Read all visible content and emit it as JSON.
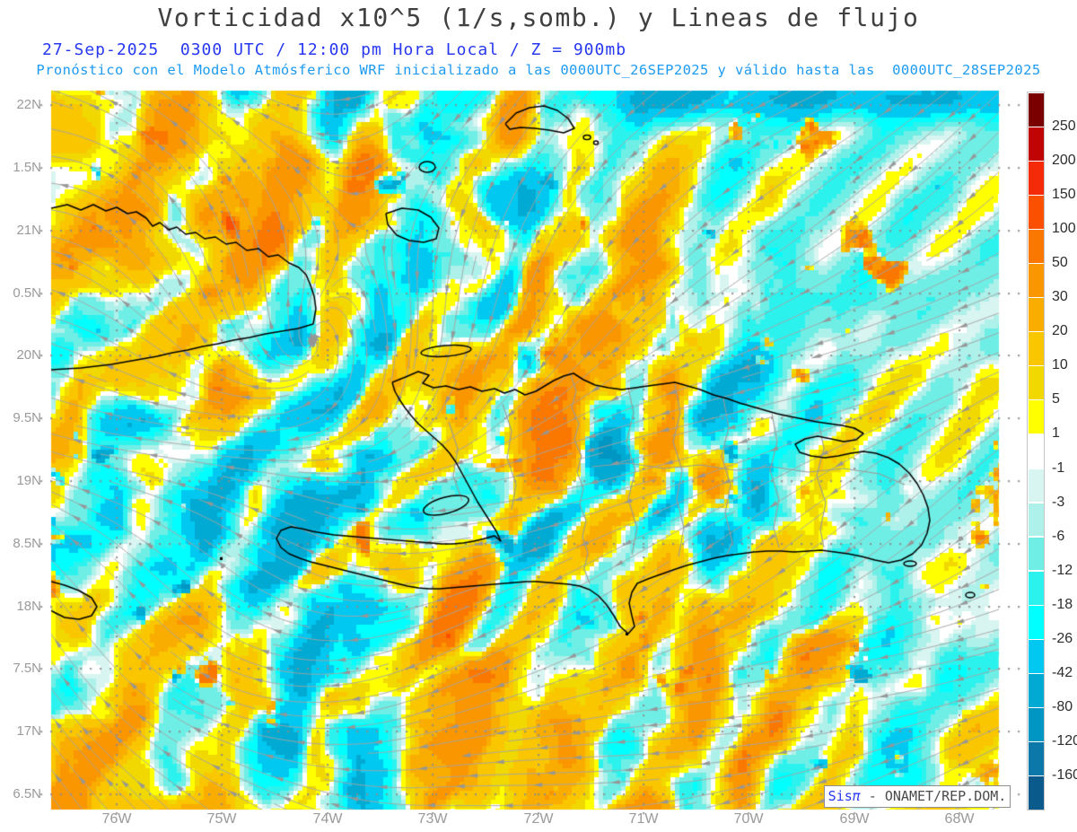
{
  "header": {
    "title": "Vorticidad x10^5 (1/s,somb.) y Lineas de flujo",
    "datetime_line": "27-Sep-2025  0300 UTC / 12:00 pm Hora Local / Z = 900mb",
    "model_line": "Pronóstico con el Modelo Atmósferico WRF inicializado a las 0000UTC_26SEP2025 y válido hasta las  0000UTC_28SEP2025"
  },
  "map": {
    "lat_labels": [
      {
        "label": "22N",
        "lat": 22.0
      },
      {
        "label": "1.5N",
        "lat": 21.5
      },
      {
        "label": "21N",
        "lat": 21.0
      },
      {
        "label": "0.5N",
        "lat": 20.5
      },
      {
        "label": "20N",
        "lat": 20.0
      },
      {
        "label": "9.5N",
        "lat": 19.5
      },
      {
        "label": "19N",
        "lat": 19.0
      },
      {
        "label": "8.5N",
        "lat": 18.5
      },
      {
        "label": "18N",
        "lat": 18.0
      },
      {
        "label": "7.5N",
        "lat": 17.5
      },
      {
        "label": "17N",
        "lat": 17.0
      },
      {
        "label": "6.5N",
        "lat": 16.5
      }
    ],
    "lon_labels": [
      {
        "label": "76W",
        "lon": 76
      },
      {
        "label": "75W",
        "lon": 75
      },
      {
        "label": "74W",
        "lon": 74
      },
      {
        "label": "73W",
        "lon": 73
      },
      {
        "label": "72W",
        "lon": 72
      },
      {
        "label": "71W",
        "lon": 71
      },
      {
        "label": "70W",
        "lon": 70
      },
      {
        "label": "69W",
        "lon": 69
      },
      {
        "label": "68W",
        "lon": 68
      }
    ]
  },
  "colorbar": {
    "tick_labels": [
      "250",
      "200",
      "150",
      "100",
      "50",
      "30",
      "20",
      "10",
      "5",
      "1",
      "-1",
      "-3",
      "-6",
      "-12",
      "-18",
      "-26",
      "-42",
      "-80",
      "-120",
      "-160"
    ],
    "colors_top_to_bottom": [
      "#7a0000",
      "#c00404",
      "#f42a08",
      "#fa5000",
      "#fa7800",
      "#fa9600",
      "#f9ad00",
      "#f9c600",
      "#f0d800",
      "#ffff00",
      "#ffffff",
      "#d8f5f1",
      "#aef0ea",
      "#6feee6",
      "#2cf2ee",
      "#00ffff",
      "#00c8f0",
      "#00aad2",
      "#0096c3",
      "#0c78aa",
      "#0b5a8c"
    ]
  },
  "watermark": {
    "brand": "Sis",
    "pi": "π",
    "org": " - ONAMET/REP.DOM."
  },
  "chart_data": {
    "type": "heatmap",
    "title": "Vorticidad x10^5 (1/s,somb.) y Lineas de flujo",
    "level": "Z = 900mb",
    "valid_time": "27-Sep-2025 0300 UTC / 12:00 pm Hora Local",
    "model_run": "WRF inicializado 0000UTC_26SEP2025, válido hasta 0000UTC_28SEP2025",
    "colorbar_levels": [
      250,
      200,
      150,
      100,
      50,
      30,
      20,
      10,
      5,
      1,
      -1,
      -3,
      -6,
      -12,
      -18,
      -26,
      -42,
      -80,
      -120,
      -160
    ],
    "x_ticks": [
      "76W",
      "75W",
      "74W",
      "73W",
      "72W",
      "71W",
      "70W",
      "69W",
      "68W"
    ],
    "y_ticks": [
      "22N",
      "1.5N",
      "21N",
      "0.5N",
      "20N",
      "9.5N",
      "19N",
      "8.5N",
      "18N",
      "7.5N",
      "17N",
      "6.5N"
    ],
    "overlay": "streamlines with arrowheads (gray), coastlines (black), admin borders (gray)"
  }
}
